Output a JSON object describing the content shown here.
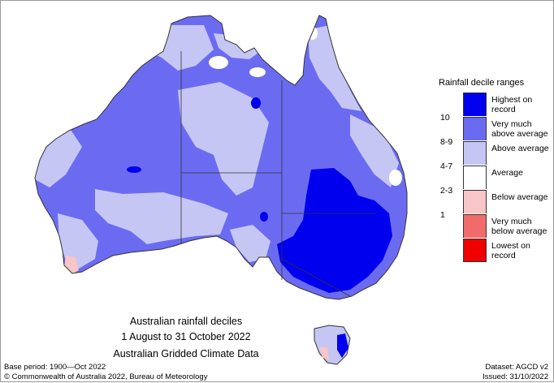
{
  "legend": {
    "title": "Rainfall decile ranges",
    "items": [
      {
        "label": "Highest on record",
        "color": "#0000ee",
        "boundary": ""
      },
      {
        "label": "Very much above average",
        "color": "#6b6bf2",
        "boundary": "10"
      },
      {
        "label": "Above average",
        "color": "#c6c6f5",
        "boundary": "8-9"
      },
      {
        "label": "Average",
        "color": "#ffffff",
        "boundary": "4-7"
      },
      {
        "label": "Below average",
        "color": "#f8c6c6",
        "boundary": "2-3"
      },
      {
        "label": "Very much below average",
        "color": "#f26b6b",
        "boundary": "1"
      },
      {
        "label": "Lowest on record",
        "color": "#f00000",
        "boundary": ""
      }
    ]
  },
  "caption": {
    "line1": "Australian rainfall deciles",
    "line2": "1 August to 31 October 2022",
    "line3": "Australian Gridded Climate Data"
  },
  "footer": {
    "base_period": "Base period: 1900—Oct 2022",
    "dataset": "Dataset: AGCD v2",
    "copyright": "© Commonwealth of Australia 2022, Bureau of Meteorology",
    "issued": "Issued: 31/10/2022"
  },
  "map": {
    "region": "Australia",
    "colors": {
      "highest": "#0000ee",
      "very_much_above": "#6b6bf2",
      "above": "#c6c6f5",
      "average": "#ffffff",
      "below": "#f8c6c6",
      "border": "#333333"
    }
  }
}
